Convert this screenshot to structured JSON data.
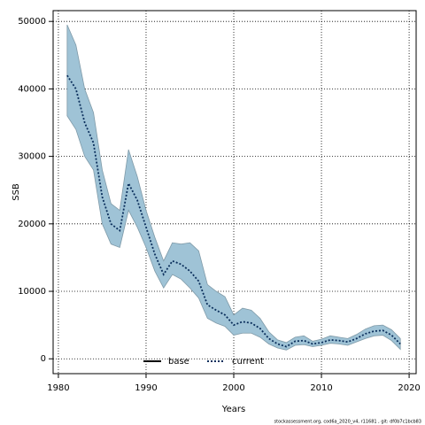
{
  "chart_data": {
    "type": "line",
    "x_label": "Years",
    "y_label": "SSB",
    "footer": "stockassessment.org, cod6a_2020_v4, r11681 , git: df0b7c1bcb83",
    "x": [
      1981,
      1982,
      1983,
      1984,
      1985,
      1986,
      1987,
      1988,
      1989,
      1990,
      1991,
      1992,
      1993,
      1994,
      1995,
      1996,
      1997,
      1998,
      1999,
      2000,
      2001,
      2002,
      2003,
      2004,
      2005,
      2006,
      2007,
      2008,
      2009,
      2010,
      2011,
      2012,
      2013,
      2014,
      2015,
      2016,
      2017,
      2018,
      2019
    ],
    "series": [
      {
        "name": "current",
        "color": "#0b2f5c",
        "band_color": "#9fc3d6",
        "values": [
          42000,
          40000,
          35000,
          32000,
          24000,
          20000,
          19000,
          26000,
          23500,
          19500,
          15500,
          12500,
          14500,
          14000,
          13000,
          11500,
          8000,
          7200,
          6500,
          5000,
          5500,
          5300,
          4500,
          3000,
          2200,
          1800,
          2600,
          2700,
          2200,
          2400,
          2800,
          2700,
          2500,
          3000,
          3700,
          4100,
          4200,
          3500,
          2200
        ],
        "lower": [
          36000,
          34000,
          30000,
          28000,
          20000,
          17000,
          16500,
          22000,
          19500,
          16500,
          13000,
          10500,
          12500,
          11800,
          10500,
          9000,
          6000,
          5300,
          4800,
          3500,
          3800,
          3800,
          3200,
          2200,
          1600,
          1300,
          2000,
          2100,
          1800,
          2000,
          2300,
          2200,
          2000,
          2500,
          3000,
          3400,
          3500,
          2700,
          1400
        ],
        "upper": [
          49500,
          46500,
          40000,
          36500,
          28000,
          23000,
          22000,
          31000,
          27000,
          22000,
          18000,
          14500,
          17200,
          17000,
          17200,
          16000,
          11000,
          10000,
          9200,
          6500,
          7500,
          7200,
          6000,
          4000,
          2800,
          2400,
          3200,
          3400,
          2600,
          2900,
          3400,
          3200,
          3000,
          3600,
          4400,
          4900,
          5000,
          4300,
          3000
        ]
      }
    ],
    "legend": [
      {
        "name": "base",
        "color": "#000000"
      },
      {
        "name": "current",
        "color": "#0b2f5c"
      }
    ],
    "legend_position": "bottom",
    "xlim": [
      1979.4,
      2020.8
    ],
    "ylim": [
      -2200,
      51600
    ],
    "xticks": [
      1980,
      1990,
      2000,
      2010,
      2020
    ],
    "yticks": [
      0,
      10000,
      20000,
      30000,
      40000,
      50000
    ],
    "grid": true
  }
}
